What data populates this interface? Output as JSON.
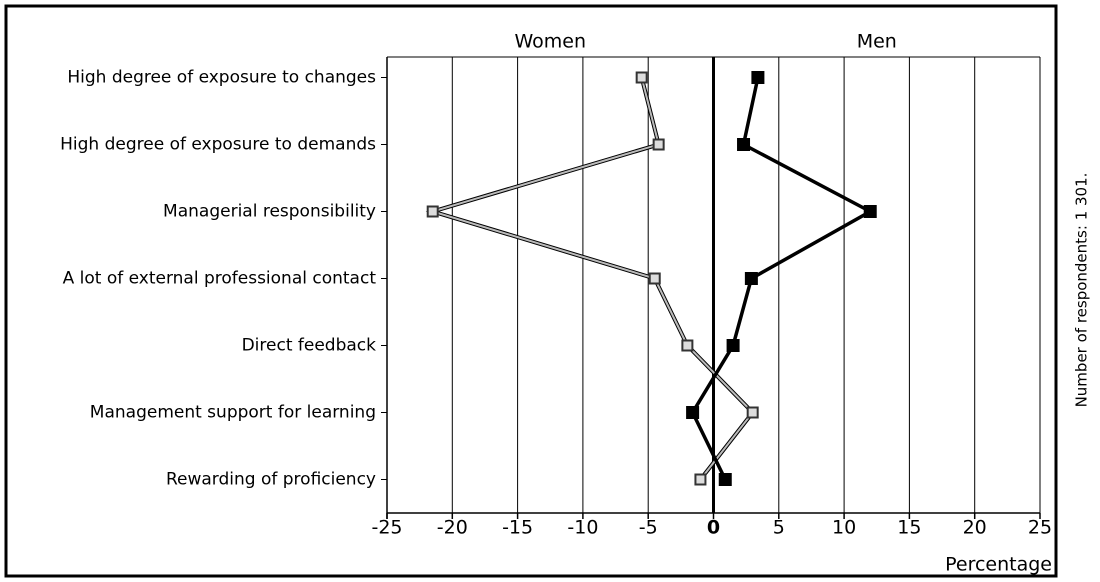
{
  "chart_data": {
    "type": "line",
    "orientation": "horizontal",
    "headers": [
      "Women",
      "Men"
    ],
    "categories": [
      "High degree of exposure to changes",
      "High degree of exposure to demands",
      "Managerial responsibility",
      "A lot of external professional contact",
      "Direct feedback",
      "Management support for learning",
      "Rewarding of proficiency"
    ],
    "series": [
      {
        "name": "Women",
        "color": "#888888",
        "values": [
          -5.5,
          -4.2,
          -21.5,
          -4.5,
          -2,
          3,
          -1
        ]
      },
      {
        "name": "Men",
        "color": "#000000",
        "values": [
          3.4,
          2.3,
          12,
          2.9,
          1.5,
          -1.6,
          0.9
        ]
      }
    ],
    "xlim": [
      -25,
      25
    ],
    "xticks": [
      -25,
      -20,
      -15,
      -10,
      -5,
      0,
      5,
      10,
      15,
      20,
      25
    ],
    "xlabel": "Percentage",
    "note": "Number of respondents: 1 301.",
    "grid": true
  }
}
